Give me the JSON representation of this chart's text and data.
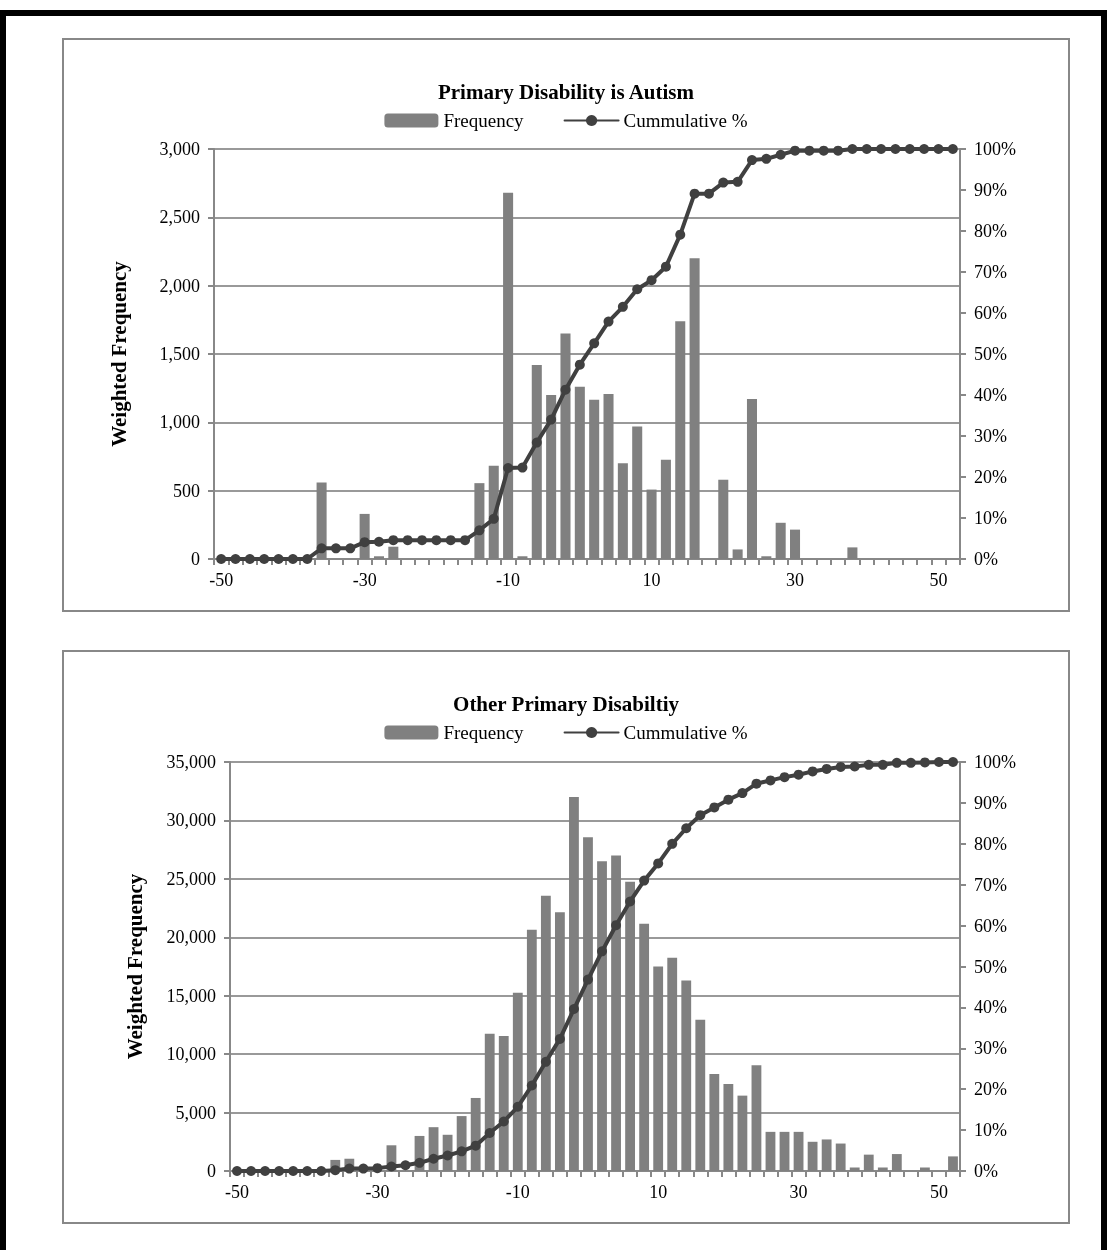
{
  "chart_data": [
    {
      "type": "bar",
      "title": "Primary Disability is Autism",
      "ylabel": "Weighted Frequency",
      "categories": [
        "-50",
        null,
        null,
        null,
        null,
        null,
        null,
        null,
        null,
        null,
        "-30",
        null,
        null,
        null,
        null,
        null,
        null,
        null,
        null,
        null,
        "-10",
        null,
        null,
        null,
        null,
        null,
        null,
        null,
        null,
        null,
        "10",
        null,
        null,
        null,
        null,
        null,
        null,
        null,
        null,
        null,
        "30",
        null,
        null,
        null,
        null,
        null,
        null,
        null,
        null,
        null,
        "50",
        null
      ],
      "series": [
        {
          "name": "Frequency",
          "color": "#808080",
          "values": [
            0,
            0,
            0,
            0,
            0,
            0,
            0,
            560,
            0,
            0,
            330,
            20,
            90,
            0,
            0,
            0,
            0,
            0,
            555,
            683,
            2680,
            20,
            1420,
            1200,
            1650,
            1260,
            1165,
            1208,
            700,
            969,
            508,
            726,
            1740,
            2200,
            0,
            580,
            70,
            1170,
            20,
            265,
            215,
            0,
            0,
            0,
            85,
            0,
            0,
            0,
            0,
            0,
            0,
            0
          ]
        },
        {
          "name": "Cummulative %",
          "type": "line",
          "axis": "y2",
          "color": "#404040",
          "values": [
            0,
            0,
            0,
            0,
            0,
            0,
            0,
            2.6,
            2.6,
            2.6,
            4.1,
            4.2,
            4.6,
            4.6,
            4.6,
            4.6,
            4.6,
            4.6,
            7.0,
            9.8,
            22.2,
            22.3,
            28.4,
            34.0,
            41.3,
            47.4,
            52.6,
            57.9,
            61.5,
            65.8,
            68.0,
            71.3,
            79.1,
            89.1,
            89.1,
            91.8,
            92.0,
            97.3,
            97.6,
            98.6,
            99.6,
            99.6,
            99.6,
            99.6,
            100,
            100,
            100,
            100,
            100,
            100,
            100,
            100
          ]
        }
      ],
      "ylim": [
        0,
        3000
      ],
      "yticks": [
        0,
        {
          "value": 500,
          "label": "500"
        },
        {
          "value": 1000,
          "label": "1,000"
        },
        {
          "value": 1500,
          "label": "1,500"
        },
        {
          "value": 2000,
          "label": "2,000"
        },
        {
          "value": 2500,
          "label": "2,500"
        },
        {
          "value": 3000,
          "label": "3,000"
        }
      ],
      "y2lim": [
        0,
        100
      ],
      "y2ticks": [
        {
          "value": 0,
          "label": "0%"
        },
        {
          "value": 10,
          "label": "10%"
        },
        {
          "value": 20,
          "label": "20%"
        },
        {
          "value": 30,
          "label": "30%"
        },
        {
          "value": 40,
          "label": "40%"
        },
        {
          "value": 50,
          "label": "50%"
        },
        {
          "value": 60,
          "label": "60%"
        },
        {
          "value": 70,
          "label": "70%"
        },
        {
          "value": 80,
          "label": "80%"
        },
        {
          "value": 90,
          "label": "90%"
        },
        {
          "value": 100,
          "label": "100%"
        }
      ],
      "grid": "y",
      "legend": "top",
      "marker": "circle",
      "line_style": "solid"
    },
    {
      "type": "bar",
      "title": "Other Primary Disabiltiy",
      "ylabel": "Weighted Frequency",
      "categories": [
        "-50",
        null,
        null,
        null,
        null,
        null,
        null,
        null,
        null,
        null,
        "-30",
        null,
        null,
        null,
        null,
        null,
        null,
        null,
        null,
        null,
        "-10",
        null,
        null,
        null,
        null,
        null,
        null,
        null,
        null,
        null,
        "10",
        null,
        null,
        null,
        null,
        null,
        null,
        null,
        null,
        null,
        "30",
        null,
        null,
        null,
        null,
        null,
        null,
        null,
        null,
        null,
        "50",
        null
      ],
      "series": [
        {
          "name": "Frequency",
          "color": "#808080",
          "values": [
            0,
            0,
            0,
            0,
            0,
            0,
            0,
            950,
            1050,
            0,
            0,
            2200,
            0,
            3000,
            3750,
            3100,
            4700,
            6250,
            11750,
            11550,
            15250,
            20650,
            23550,
            22150,
            32000,
            28550,
            26500,
            27000,
            24750,
            21150,
            17500,
            18250,
            16300,
            12950,
            8300,
            7450,
            6450,
            9050,
            3350,
            3350,
            3350,
            2500,
            2700,
            2350,
            300,
            1400,
            300,
            1450,
            0,
            300,
            0,
            1250
          ]
        },
        {
          "name": "Cummulative %",
          "type": "line",
          "axis": "y2",
          "color": "#404040",
          "values": [
            0,
            0,
            0,
            0,
            0,
            0,
            0,
            0.2,
            0.6,
            0.6,
            0.7,
            1.1,
            1.4,
            2.0,
            3.0,
            3.8,
            4.8,
            6.2,
            9.3,
            12.1,
            15.7,
            20.9,
            26.7,
            32.3,
            39.6,
            46.8,
            53.7,
            60.1,
            65.9,
            71.0,
            75.2,
            80.0,
            83.8,
            87.0,
            88.9,
            90.8,
            92.4,
            94.7,
            95.5,
            96.3,
            96.9,
            97.7,
            98.3,
            98.8,
            98.9,
            99.3,
            99.3,
            99.8,
            99.8,
            99.9,
            100,
            100
          ]
        }
      ],
      "ylim": [
        0,
        35000
      ],
      "yticks": [
        0,
        {
          "value": 5000,
          "label": "5,000"
        },
        {
          "value": 10000,
          "label": "10,000"
        },
        {
          "value": 15000,
          "label": "15,000"
        },
        {
          "value": 20000,
          "label": "20,000"
        },
        {
          "value": 25000,
          "label": "25,000"
        },
        {
          "value": 30000,
          "label": "30,000"
        },
        {
          "value": 35000,
          "label": "35,000"
        }
      ],
      "y2lim": [
        0,
        100
      ],
      "y2ticks": [
        {
          "value": 0,
          "label": "0%"
        },
        {
          "value": 10,
          "label": "10%"
        },
        {
          "value": 20,
          "label": "20%"
        },
        {
          "value": 30,
          "label": "30%"
        },
        {
          "value": 40,
          "label": "40%"
        },
        {
          "value": 50,
          "label": "50%"
        },
        {
          "value": 60,
          "label": "60%"
        },
        {
          "value": 70,
          "label": "70%"
        },
        {
          "value": 80,
          "label": "80%"
        },
        {
          "value": 90,
          "label": "90%"
        },
        {
          "value": 100,
          "label": "100%"
        }
      ],
      "grid": "y",
      "legend": "top",
      "marker": "circle",
      "line_style": "solid"
    }
  ]
}
